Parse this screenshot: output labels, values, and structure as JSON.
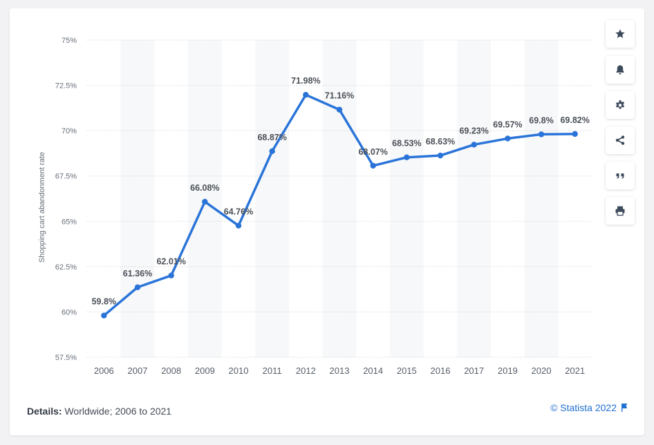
{
  "chart_data": {
    "type": "line",
    "categories": [
      "2006",
      "2007",
      "2008",
      "2009",
      "2010",
      "2011",
      "2012",
      "2013",
      "2014",
      "2015",
      "2016",
      "2017",
      "2019",
      "2020",
      "2021"
    ],
    "values": [
      59.8,
      61.36,
      62.01,
      66.08,
      64.76,
      68.87,
      71.98,
      71.16,
      68.07,
      68.53,
      68.63,
      69.23,
      69.57,
      69.8,
      69.82
    ],
    "data_labels": [
      "59.8%",
      "61.36%",
      "62.01%",
      "66.08%",
      "64.76%",
      "68.87%",
      "71.98%",
      "71.16%",
      "68.07%",
      "68.53%",
      "68.63%",
      "69.23%",
      "69.57%",
      "69.8%",
      "69.82%"
    ],
    "ylabel": "Shopping cart abandonment rate",
    "xlabel": "",
    "ylim": [
      57.5,
      75
    ],
    "yticks": [
      75,
      72.5,
      70,
      67.5,
      65,
      62.5,
      60,
      57.5
    ],
    "ytick_labels": [
      "75%",
      "72.5%",
      "70%",
      "67.5%",
      "65%",
      "62.5%",
      "60%",
      "57.5%"
    ],
    "grid": true,
    "line_color": "#2a74d9"
  },
  "details": {
    "label": "Details:",
    "text": "Worldwide; 2006 to 2021"
  },
  "credit": "© Statista 2022",
  "sidebar": {
    "buttons": [
      "star-icon",
      "bell-icon",
      "gear-icon",
      "share-icon",
      "quote-icon",
      "print-icon"
    ]
  }
}
